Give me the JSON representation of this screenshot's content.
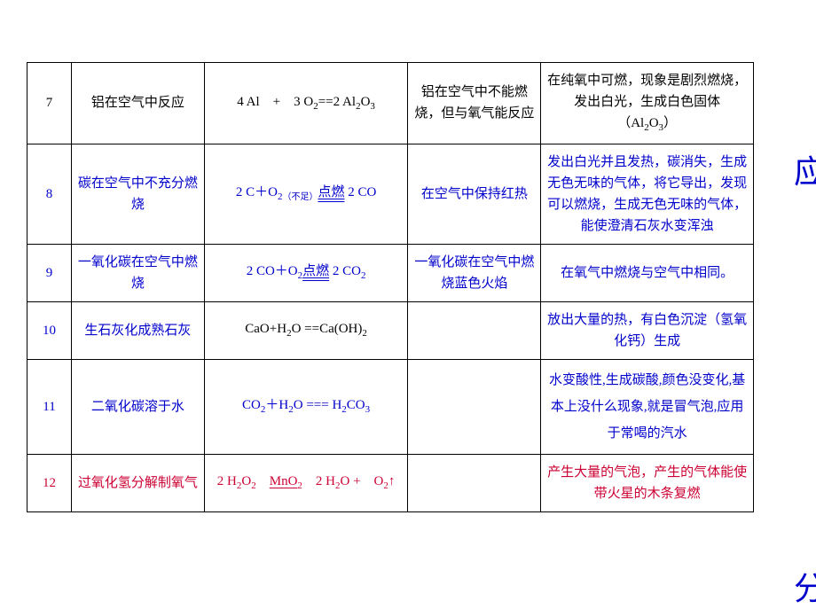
{
  "side_labels": {
    "top": "应",
    "bottom": "分"
  },
  "colors": {
    "blue": "#0000cc",
    "red": "#cc0033",
    "border": "#000000",
    "background": "#ffffff"
  },
  "rows": [
    {
      "num": "7",
      "name": "铝在空气中反应",
      "equation": "4 Al　+　3 O₂==2 Al₂O₃",
      "note": "铝在空气中不能燃烧，但与氧气能反应",
      "desc": "在纯氧中可燃，现象是剧烈燃烧，发出白光，生成白色固体（Al₂O₃）",
      "css_num": "",
      "css_name": "",
      "css_eq": "",
      "css_note": "",
      "css_desc": ""
    },
    {
      "num": "8",
      "name": "碳在空气中不充分燃烧",
      "equation_prefix": "2 C＋O",
      "equation_sub1": "2（不足）",
      "equation_mid": "点燃",
      "equation_suffix": "2 CO",
      "note": "在空气中保持红热",
      "desc": "发出白光并且发热，碳消失，生成无色无味的气体，将它导出，发现可以燃烧，生成无色无味的气体，能使澄清石灰水变浑浊",
      "css_num": "blue",
      "css_name": "blue",
      "css_eq": "blue",
      "css_note": "blue",
      "css_desc": "blue"
    },
    {
      "num": "9",
      "name": "一氧化碳在空气中燃烧",
      "equation_prefix": "2 CO＋O",
      "equation_sub1": "2",
      "equation_mid": "点燃",
      "equation_suffix": " 2 CO₂",
      "note": "一氧化碳在空气中燃烧蓝色火焰",
      "desc": "在氧气中燃烧与空气中相同。",
      "css_num": "blue",
      "css_name": "blue",
      "css_eq": "blue",
      "css_note": "blue",
      "css_desc": "blue"
    },
    {
      "num": "10",
      "name": "生石灰化成熟石灰",
      "equation": "CaO+H₂O ==Ca(OH)₂",
      "note": "",
      "desc": "放出大量的热，有白色沉淀（氢氧化钙）生成",
      "css_num": "blue",
      "css_name": "blue",
      "css_eq": "",
      "css_note": "",
      "css_desc": "blue"
    },
    {
      "num": "11",
      "name": "二氧化碳溶于水",
      "equation": "CO₂＋H₂O === H₂CO₃",
      "note": "",
      "desc": "水变酸性,生成碳酸,颜色没变化,基本上没什么现象,就是冒气泡,应用于常喝的汽水",
      "css_num": "blue",
      "css_name": "blue",
      "css_eq": "blue",
      "css_note": "",
      "css_desc": "blue"
    },
    {
      "num": "12",
      "name": "过氧化氢分解制氧气",
      "equation_prefix": "2 H₂O₂ ",
      "equation_mid": "MnO₂",
      "equation_suffix": "　2 H₂O +　O₂↑",
      "note": "",
      "desc": "产生大量的气泡，产生的气体能使带火星的木条复燃",
      "css_num": "red",
      "css_name": "red",
      "css_eq": "red",
      "css_note": "",
      "css_desc": "red"
    }
  ]
}
